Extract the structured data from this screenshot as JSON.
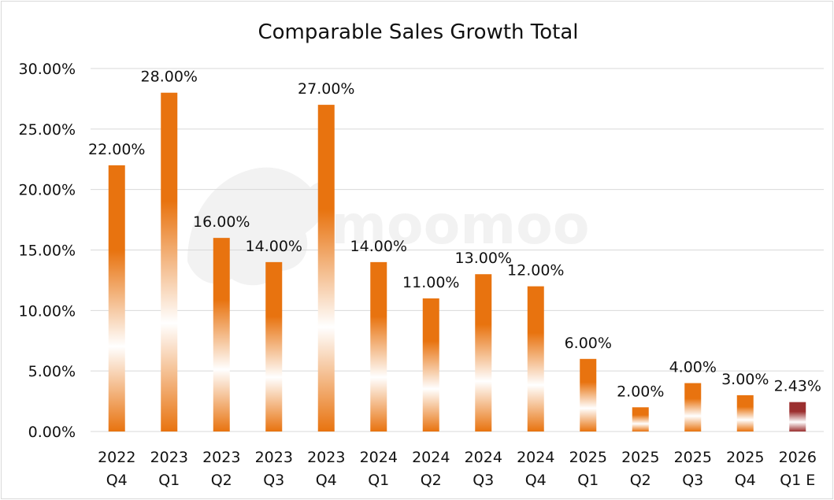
{
  "chart_data": {
    "type": "bar",
    "title": "Comparable Sales Growth Total",
    "categories": [
      [
        "2022",
        "Q4"
      ],
      [
        "2023",
        "Q1"
      ],
      [
        "2023",
        "Q2"
      ],
      [
        "2023",
        "Q3"
      ],
      [
        "2023",
        "Q4"
      ],
      [
        "2024",
        "Q1"
      ],
      [
        "2024",
        "Q2"
      ],
      [
        "2024",
        "Q3"
      ],
      [
        "2024",
        "Q4"
      ],
      [
        "2025",
        "Q1"
      ],
      [
        "2025",
        "Q2"
      ],
      [
        "2025",
        "Q3"
      ],
      [
        "2025",
        "Q4"
      ],
      [
        "2026",
        "Q1 E"
      ]
    ],
    "values": [
      22,
      28,
      16,
      14,
      27,
      14,
      11,
      13,
      12,
      6,
      2,
      4,
      3,
      2.43
    ],
    "data_labels": [
      "22.00%",
      "28.00%",
      "16.00%",
      "14.00%",
      "27.00%",
      "14.00%",
      "11.00%",
      "13.00%",
      "12.00%",
      "6.00%",
      "2.00%",
      "4.00%",
      "3.00%",
      "2.43%"
    ],
    "ylim": [
      0,
      30
    ],
    "yticks": [
      "0.00%",
      "5.00%",
      "10.00%",
      "15.00%",
      "20.00%",
      "25.00%",
      "30.00%"
    ],
    "xlabel": "",
    "ylabel": "",
    "grid": true,
    "colors": {
      "bar": "#e8730f",
      "estimate_bar": "#9b2f2f",
      "highlight": "#ffffff"
    },
    "estimate_index": 13
  },
  "watermark": {
    "text": "moomoo"
  }
}
